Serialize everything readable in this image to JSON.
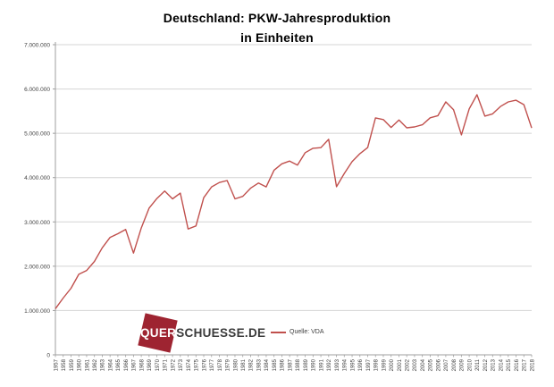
{
  "title": {
    "line1": "Deutschland: PKW-Jahresproduktion",
    "line2": "in Einheiten"
  },
  "legend": {
    "label": "Quelle: VDA"
  },
  "logo": {
    "part1": "QUER",
    "part2": "SCHUESSE.DE"
  },
  "colors": {
    "line": "#c0504d",
    "logo_square": "#9e2431",
    "grid": "#d4d4d4",
    "axis": "#9f9f9f",
    "label": "#3f3f3f"
  },
  "chart_data": {
    "type": "line",
    "title": "Deutschland: PKW-Jahresproduktion in Einheiten",
    "xlabel": "",
    "ylabel": "",
    "grid": true,
    "legend_position": "bottom-inside",
    "series_name": "Quelle: VDA",
    "ylim": [
      0,
      7000000
    ],
    "y_ticks": [
      0,
      1000000,
      2000000,
      3000000,
      4000000,
      5000000,
      6000000,
      7000000
    ],
    "y_tick_labels": [
      "0",
      "1.000.000",
      "2.000.000",
      "3.000.000",
      "4.000.000",
      "5.000.000",
      "6.000.000",
      "7.000.000"
    ],
    "categories": [
      "1957",
      "1958",
      "1959",
      "1960",
      "1961",
      "1962",
      "1963",
      "1964",
      "1965",
      "1966",
      "1967",
      "1968",
      "1969",
      "1970",
      "1971",
      "1972",
      "1973",
      "1974",
      "1975",
      "1976",
      "1977",
      "1978",
      "1979",
      "1980",
      "1981",
      "1982",
      "1983",
      "1984",
      "1985",
      "1986",
      "1987",
      "1988",
      "1989",
      "1990",
      "1991",
      "1992",
      "1993",
      "1994",
      "1995",
      "1996",
      "1997",
      "1998",
      "1999",
      "2000",
      "2001",
      "2002",
      "2003",
      "2004",
      "2005",
      "2006",
      "2007",
      "2008",
      "2009",
      "2010",
      "2011",
      "2012",
      "2013",
      "2014",
      "2015",
      "2016",
      "2017",
      "2018"
    ],
    "values": [
      1040000,
      1281000,
      1503000,
      1817000,
      1904000,
      2109000,
      2414000,
      2650000,
      2734000,
      2830000,
      2296000,
      2862000,
      3313000,
      3528000,
      3697000,
      3521000,
      3649000,
      2840000,
      2908000,
      3547000,
      3791000,
      3890000,
      3933000,
      3521000,
      3577000,
      3761000,
      3878000,
      3790000,
      4167000,
      4311000,
      4374000,
      4282000,
      4564000,
      4661000,
      4677000,
      4864000,
      3794000,
      4094000,
      4360000,
      4540000,
      4678000,
      5348000,
      5309000,
      5132000,
      5301000,
      5123000,
      5145000,
      5192000,
      5350000,
      5398000,
      5709000,
      5532000,
      4964000,
      5552000,
      5871000,
      5388000,
      5439000,
      5604000,
      5708000,
      5747000,
      5646000,
      5120000
    ]
  }
}
